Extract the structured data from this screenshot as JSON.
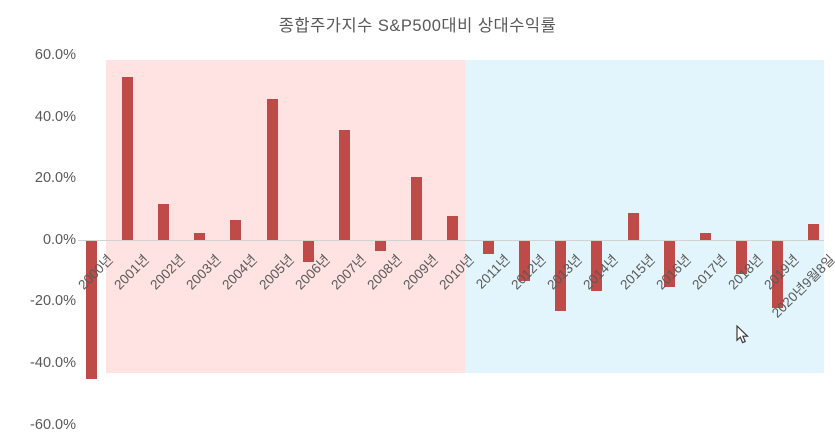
{
  "chart_data": {
    "type": "bar",
    "title": "종합주가지수 S&P500대비 상대수익률",
    "categories": [
      "2000년",
      "2001년",
      "2002년",
      "2003년",
      "2004년",
      "2005년",
      "2006년",
      "2007년",
      "2008년",
      "2009년",
      "2010년",
      "2011년",
      "2012년",
      "2013년",
      "2014년",
      "2015년",
      "2016년",
      "2017년",
      "2018년",
      "2019년",
      "2020년9월8일"
    ],
    "values": [
      -45,
      53,
      12,
      2.5,
      6.5,
      46,
      -7,
      36,
      -3.5,
      20.5,
      8,
      -4.5,
      -13,
      -23,
      -16.5,
      9,
      -15,
      2.5,
      -11,
      -22,
      5.5
    ],
    "unit": "%",
    "xlabel": "",
    "ylabel": "",
    "ylim": [
      -60,
      60
    ],
    "y_ticks": [
      "60.0%",
      "40.0%",
      "20.0%",
      "0.0%",
      "-20.0%",
      "-40.0%",
      "-60.0%"
    ],
    "grid": "zero-line-only",
    "legend_position": "none",
    "bar_color": "#be4b48",
    "regions": [
      {
        "name": "decade-2001-2010",
        "from": "2001년",
        "to": "2010년",
        "color": "#ffe2e2"
      },
      {
        "name": "decade-2011-2020",
        "from": "2011년",
        "to": "2020년9월8일",
        "color": "#e3f5fc"
      }
    ]
  }
}
